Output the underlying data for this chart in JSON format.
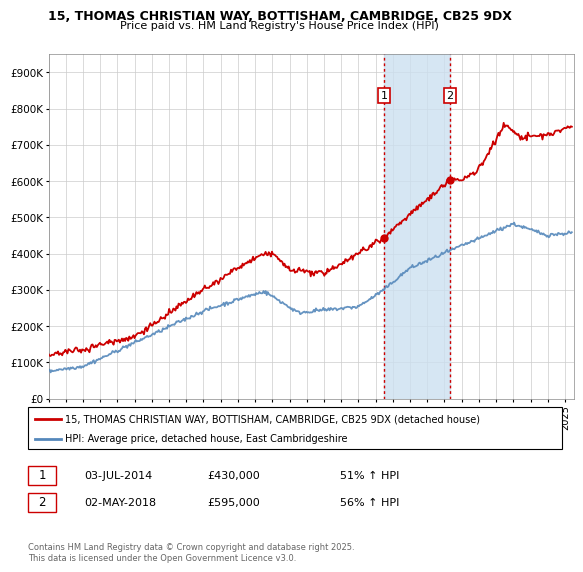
{
  "title1": "15, THOMAS CHRISTIAN WAY, BOTTISHAM, CAMBRIDGE, CB25 9DX",
  "title2": "Price paid vs. HM Land Registry's House Price Index (HPI)",
  "legend_line1": "15, THOMAS CHRISTIAN WAY, BOTTISHAM, CAMBRIDGE, CB25 9DX (detached house)",
  "legend_line2": "HPI: Average price, detached house, East Cambridgeshire",
  "sale1_date": "03-JUL-2014",
  "sale1_price": 430000,
  "sale1_pct": "51% ↑ HPI",
  "sale2_date": "02-MAY-2018",
  "sale2_price": 595000,
  "sale2_pct": "56% ↑ HPI",
  "footnote": "Contains HM Land Registry data © Crown copyright and database right 2025.\nThis data is licensed under the Open Government Licence v3.0.",
  "red_color": "#cc0000",
  "blue_color": "#5588bb",
  "shading_color": "#cce0f0",
  "vline_color": "#cc0000",
  "background_color": "#ffffff",
  "grid_color": "#cccccc",
  "ylim": [
    0,
    950000
  ],
  "yticks": [
    0,
    100000,
    200000,
    300000,
    400000,
    500000,
    600000,
    700000,
    800000,
    900000
  ],
  "ytick_labels": [
    "£0",
    "£100K",
    "£200K",
    "£300K",
    "£400K",
    "£500K",
    "£600K",
    "£700K",
    "£800K",
    "£900K"
  ],
  "sale1_x": 2014.5,
  "sale2_x": 2018.33,
  "xlim_left": 1995,
  "xlim_right": 2025.5
}
